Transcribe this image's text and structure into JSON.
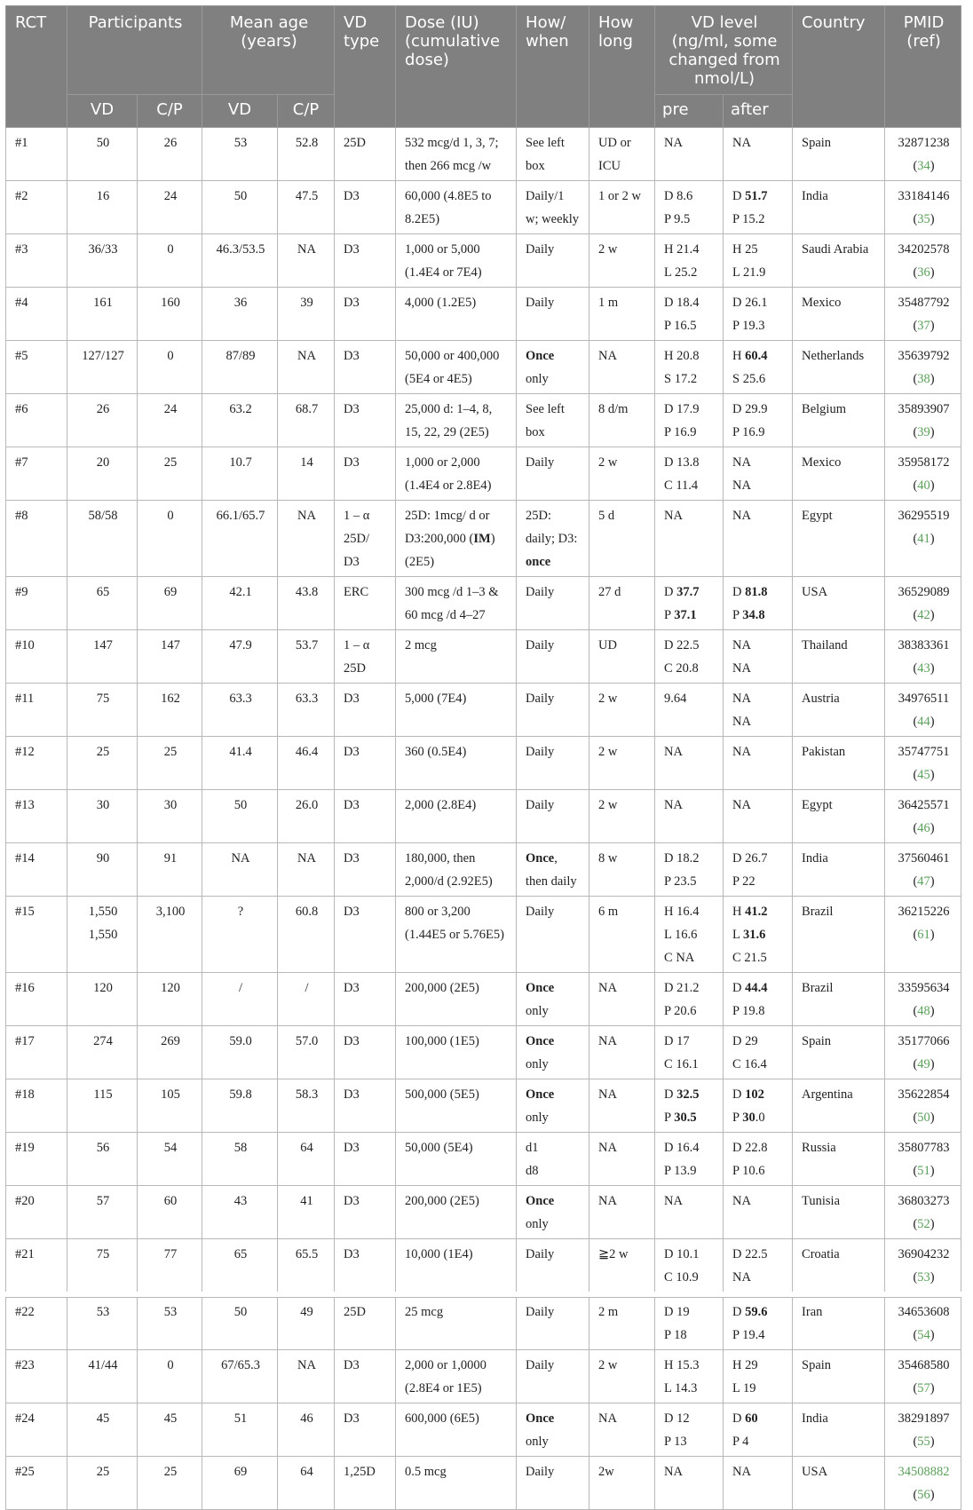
{
  "header": {
    "rct": "RCT",
    "participants": "Participants",
    "mean_age": [
      "Mean age",
      "(years)"
    ],
    "vd_type": [
      "VD",
      "type"
    ],
    "dose": [
      "Dose (IU)",
      "(cumulative",
      "dose)"
    ],
    "how_when": [
      "How/",
      "when"
    ],
    "how_long": [
      "How",
      "long"
    ],
    "vd_level": [
      "VD level",
      "(ng/ml, some",
      "changed from",
      "nmol/L)"
    ],
    "country": "Country",
    "pmid": [
      "PMID",
      "(ref)"
    ],
    "sub": {
      "vd": "VD",
      "cp": "C/P",
      "vd2": "VD",
      "cp2": "C/P",
      "pre": "pre",
      "after": "after"
    }
  },
  "colors": {
    "header_bg": "#808080",
    "ref_link": "#5aa05a"
  },
  "rows": [
    {
      "rct": "#1",
      "vd": [
        "50"
      ],
      "cp": [
        "26"
      ],
      "age_vd": [
        "53"
      ],
      "age_cp": [
        "52.8"
      ],
      "type": [
        "25D"
      ],
      "dose": [
        "532 mcg/d 1, 3, 7;",
        "then 266 mcg /w"
      ],
      "how": [
        "See left",
        "box"
      ],
      "long": [
        "UD or",
        "ICU"
      ],
      "pre": [
        "NA"
      ],
      "after": [
        "NA"
      ],
      "country": "Spain",
      "pmid": "32871238",
      "ref": "34"
    },
    {
      "rct": "#2",
      "vd": [
        "16"
      ],
      "cp": [
        "24"
      ],
      "age_vd": [
        "50"
      ],
      "age_cp": [
        "47.5"
      ],
      "type": [
        "D3"
      ],
      "dose": [
        "60,000 (4.8E5 to",
        "8.2E5)"
      ],
      "how": [
        "Daily/1",
        "w; weekly"
      ],
      "long": [
        "1 or 2 w"
      ],
      "pre": [
        "D 8.6",
        "P 9.5"
      ],
      "after": [
        [
          "D ",
          {
            "b": "51.7"
          }
        ],
        "P 15.2"
      ],
      "country": "India",
      "pmid": "33184146",
      "ref": "35"
    },
    {
      "rct": "#3",
      "vd": [
        "36/33"
      ],
      "cp": [
        "0"
      ],
      "age_vd": [
        "46.3/53.5"
      ],
      "age_cp": [
        "NA"
      ],
      "type": [
        "D3"
      ],
      "dose": [
        "1,000 or 5,000",
        "(1.4E4 or 7E4)"
      ],
      "how": [
        "Daily"
      ],
      "long": [
        "2 w"
      ],
      "pre": [
        "H 21.4",
        "L 25.2"
      ],
      "after": [
        "H 25",
        "L 21.9"
      ],
      "country": "Saudi Arabia",
      "pmid": "34202578",
      "ref": "36"
    },
    {
      "rct": "#4",
      "vd": [
        "161"
      ],
      "cp": [
        "160"
      ],
      "age_vd": [
        "36"
      ],
      "age_cp": [
        "39"
      ],
      "type": [
        "D3"
      ],
      "dose": [
        "4,000 (1.2E5)"
      ],
      "how": [
        "Daily"
      ],
      "long": [
        "1 m"
      ],
      "pre": [
        "D 18.4",
        "P 16.5"
      ],
      "after": [
        "D 26.1",
        "P 19.3"
      ],
      "country": "Mexico",
      "pmid": "35487792",
      "ref": "37"
    },
    {
      "rct": "#5",
      "vd": [
        "127/127"
      ],
      "cp": [
        "0"
      ],
      "age_vd": [
        "87/89"
      ],
      "age_cp": [
        "NA"
      ],
      "type": [
        "D3"
      ],
      "dose": [
        "50,000 or 400,000",
        "(5E4 or 4E5)"
      ],
      "how": [
        [
          {
            "b": "Once"
          }
        ],
        "only"
      ],
      "long": [
        "NA"
      ],
      "pre": [
        "H 20.8",
        "S 17.2"
      ],
      "after": [
        [
          "H ",
          {
            "b": "60.4"
          }
        ],
        "S 25.6"
      ],
      "country": "Netherlands",
      "pmid": "35639792",
      "ref": "38"
    },
    {
      "rct": "#6",
      "vd": [
        "26"
      ],
      "cp": [
        "24"
      ],
      "age_vd": [
        "63.2"
      ],
      "age_cp": [
        "68.7"
      ],
      "type": [
        "D3"
      ],
      "dose": [
        "25,000 d: 1–4, 8,",
        "15, 22, 29 (2E5)"
      ],
      "how": [
        "See left",
        "box"
      ],
      "long": [
        "8 d/m"
      ],
      "pre": [
        "D 17.9",
        "P 16.9"
      ],
      "after": [
        "D 29.9",
        "P 16.9"
      ],
      "country": "Belgium",
      "pmid": "35893907",
      "ref": "39"
    },
    {
      "rct": "#7",
      "vd": [
        "20"
      ],
      "cp": [
        "25"
      ],
      "age_vd": [
        "10.7"
      ],
      "age_cp": [
        "14"
      ],
      "type": [
        "D3"
      ],
      "dose": [
        "1,000 or 2,000",
        "(1.4E4 or 2.8E4)"
      ],
      "how": [
        "Daily"
      ],
      "long": [
        "2 w"
      ],
      "pre": [
        "D 13.8",
        "C 11.4"
      ],
      "after": [
        "NA",
        "NA"
      ],
      "country": "Mexico",
      "pmid": "35958172",
      "ref": "40"
    },
    {
      "rct": "#8",
      "vd": [
        "58/58"
      ],
      "cp": [
        "0"
      ],
      "age_vd": [
        "66.1/65.7"
      ],
      "age_cp": [
        "NA"
      ],
      "type": [
        "1 – α",
        "25D/",
        "D3"
      ],
      "dose": [
        "25D: 1mcg/ d or",
        [
          "D3:200,000 (",
          {
            "b": "IM"
          },
          ")"
        ],
        "(2E5)"
      ],
      "how": [
        "25D:",
        "daily; D3:",
        [
          {
            "b": "once"
          }
        ]
      ],
      "long": [
        "5 d"
      ],
      "pre": [
        "NA"
      ],
      "after": [
        "NA"
      ],
      "country": "Egypt",
      "pmid": "36295519",
      "ref": "41"
    },
    {
      "rct": "#9",
      "vd": [
        "65"
      ],
      "cp": [
        "69"
      ],
      "age_vd": [
        "42.1"
      ],
      "age_cp": [
        "43.8"
      ],
      "type": [
        "ERC"
      ],
      "dose": [
        "300 mcg /d 1–3 &",
        "60 mcg /d 4–27"
      ],
      "how": [
        "Daily"
      ],
      "long": [
        "27 d"
      ],
      "pre": [
        [
          "D ",
          {
            "b": "37.7"
          }
        ],
        [
          "P ",
          {
            "b": "37.1"
          }
        ]
      ],
      "after": [
        [
          "D ",
          {
            "b": "81.8"
          }
        ],
        [
          "P ",
          {
            "b": "34.8"
          }
        ]
      ],
      "country": "USA",
      "pmid": "36529089",
      "ref": "42"
    },
    {
      "rct": "#10",
      "vd": [
        "147"
      ],
      "cp": [
        "147"
      ],
      "age_vd": [
        "47.9"
      ],
      "age_cp": [
        "53.7"
      ],
      "type": [
        "1 – α",
        "25D"
      ],
      "dose": [
        "2 mcg"
      ],
      "how": [
        "Daily"
      ],
      "long": [
        "UD"
      ],
      "pre": [
        "D 22.5",
        "C 20.8"
      ],
      "after": [
        "NA",
        "NA"
      ],
      "country": "Thailand",
      "pmid": "38383361",
      "ref": "43"
    },
    {
      "rct": "#11",
      "vd": [
        "75"
      ],
      "cp": [
        "162"
      ],
      "age_vd": [
        "63.3"
      ],
      "age_cp": [
        "63.3"
      ],
      "type": [
        "D3"
      ],
      "dose": [
        "5,000 (7E4)"
      ],
      "how": [
        "Daily"
      ],
      "long": [
        "2 w"
      ],
      "pre": [
        "9.64"
      ],
      "after": [
        "NA",
        "NA"
      ],
      "country": "Austria",
      "pmid": "34976511",
      "ref": "44"
    },
    {
      "rct": "#12",
      "vd": [
        "25"
      ],
      "cp": [
        "25"
      ],
      "age_vd": [
        "41.4"
      ],
      "age_cp": [
        "46.4"
      ],
      "type": [
        "D3"
      ],
      "dose": [
        "360 (0.5E4)"
      ],
      "how": [
        "Daily"
      ],
      "long": [
        "2 w"
      ],
      "pre": [
        "NA"
      ],
      "after": [
        "NA"
      ],
      "country": "Pakistan",
      "pmid": "35747751",
      "ref": "45"
    },
    {
      "rct": "#13",
      "vd": [
        "30"
      ],
      "cp": [
        "30"
      ],
      "age_vd": [
        "50"
      ],
      "age_cp": [
        "26.0"
      ],
      "type": [
        "D3"
      ],
      "dose": [
        "2,000 (2.8E4)"
      ],
      "how": [
        "Daily"
      ],
      "long": [
        "2 w"
      ],
      "pre": [
        "NA"
      ],
      "after": [
        "NA"
      ],
      "country": "Egypt",
      "pmid": "36425571",
      "ref": "46"
    },
    {
      "rct": "#14",
      "vd": [
        "90"
      ],
      "cp": [
        "91"
      ],
      "age_vd": [
        "NA"
      ],
      "age_cp": [
        "NA"
      ],
      "type": [
        "D3"
      ],
      "dose": [
        "180,000, then",
        "2,000/d (2.92E5)"
      ],
      "how": [
        [
          {
            "b": "Once"
          },
          ","
        ],
        "then daily"
      ],
      "long": [
        "8 w"
      ],
      "pre": [
        "D 18.2",
        "P 23.5"
      ],
      "after": [
        "D 26.7",
        "P 22"
      ],
      "country": "India",
      "pmid": "37560461",
      "ref": "47"
    },
    {
      "rct": "#15",
      "vd": [
        "1,550",
        "1,550"
      ],
      "cp": [
        "3,100"
      ],
      "age_vd": [
        "?"
      ],
      "age_cp": [
        "60.8"
      ],
      "type": [
        "D3"
      ],
      "dose": [
        "800 or 3,200",
        "(1.44E5 or 5.76E5)"
      ],
      "how": [
        "Daily"
      ],
      "long": [
        "6 m"
      ],
      "pre": [
        "H 16.4",
        "L 16.6",
        "C NA"
      ],
      "after": [
        [
          "H ",
          {
            "b": "41.2"
          }
        ],
        [
          "L ",
          {
            "b": "31.6"
          }
        ],
        "C 21.5"
      ],
      "country": "Brazil",
      "pmid": "36215226",
      "ref": "61"
    },
    {
      "rct": "#16",
      "vd": [
        "120"
      ],
      "cp": [
        "120"
      ],
      "age_vd": [
        "/"
      ],
      "age_cp": [
        "/"
      ],
      "type": [
        "D3"
      ],
      "dose": [
        "200,000 (2E5)"
      ],
      "how": [
        [
          {
            "b": "Once"
          }
        ],
        "only"
      ],
      "long": [
        "NA"
      ],
      "pre": [
        "D 21.2",
        "P 20.6"
      ],
      "after": [
        [
          "D ",
          {
            "b": "44.4"
          }
        ],
        "P 19.8"
      ],
      "country": "Brazil",
      "pmid": "33595634",
      "ref": "48"
    },
    {
      "rct": "#17",
      "vd": [
        "274"
      ],
      "cp": [
        "269"
      ],
      "age_vd": [
        "59.0"
      ],
      "age_cp": [
        "57.0"
      ],
      "type": [
        "D3"
      ],
      "dose": [
        "100,000 (1E5)"
      ],
      "how": [
        [
          {
            "b": "Once"
          }
        ],
        "only"
      ],
      "long": [
        "NA"
      ],
      "pre": [
        "D 17",
        "C 16.1"
      ],
      "after": [
        "D 29",
        "C 16.4"
      ],
      "country": "Spain",
      "pmid": "35177066",
      "ref": "49"
    },
    {
      "rct": "#18",
      "vd": [
        "115"
      ],
      "cp": [
        "105"
      ],
      "age_vd": [
        "59.8"
      ],
      "age_cp": [
        "58.3"
      ],
      "type": [
        "D3"
      ],
      "dose": [
        "500,000 (5E5)"
      ],
      "how": [
        [
          {
            "b": "Once"
          }
        ],
        "only"
      ],
      "long": [
        "NA"
      ],
      "pre": [
        [
          "D ",
          {
            "b": "32.5"
          }
        ],
        [
          "P ",
          {
            "b": "30.5"
          }
        ]
      ],
      "after": [
        [
          "D ",
          {
            "b": "102"
          }
        ],
        [
          "P ",
          {
            "b": "30"
          },
          ".0"
        ]
      ],
      "country": "Argentina",
      "pmid": "35622854",
      "ref": "50"
    },
    {
      "rct": "#19",
      "vd": [
        "56"
      ],
      "cp": [
        "54"
      ],
      "age_vd": [
        "58"
      ],
      "age_cp": [
        "64"
      ],
      "type": [
        "D3"
      ],
      "dose": [
        "50,000 (5E4)"
      ],
      "how": [
        "d1",
        "d8"
      ],
      "long": [
        "NA"
      ],
      "pre": [
        "D 16.4",
        "P 13.9"
      ],
      "after": [
        "D 22.8",
        "P 10.6"
      ],
      "country": "Russia",
      "pmid": "35807783",
      "ref": "51"
    },
    {
      "rct": "#20",
      "vd": [
        "57"
      ],
      "cp": [
        "60"
      ],
      "age_vd": [
        "43"
      ],
      "age_cp": [
        "41"
      ],
      "type": [
        "D3"
      ],
      "dose": [
        "200,000 (2E5)"
      ],
      "how": [
        [
          {
            "b": "Once"
          }
        ],
        "only"
      ],
      "long": [
        "NA"
      ],
      "pre": [
        "NA"
      ],
      "after": [
        "NA"
      ],
      "country": "Tunisia",
      "pmid": "36803273",
      "ref": "52"
    },
    {
      "rct": "#21",
      "vd": [
        "75"
      ],
      "cp": [
        "77"
      ],
      "age_vd": [
        "65"
      ],
      "age_cp": [
        "65.5"
      ],
      "type": [
        "D3"
      ],
      "dose": [
        "10,000 (1E4)"
      ],
      "how": [
        "Daily"
      ],
      "long": [
        "≧2 w"
      ],
      "pre": [
        "D 10.1",
        "C 10.9"
      ],
      "after": [
        "D 22.5",
        "NA"
      ],
      "country": "Croatia",
      "pmid": "36904232",
      "ref": "53"
    },
    {
      "rct": "#22",
      "vd": [
        "53"
      ],
      "cp": [
        "53"
      ],
      "age_vd": [
        "50"
      ],
      "age_cp": [
        "49"
      ],
      "type": [
        "25D"
      ],
      "dose": [
        "25 mcg"
      ],
      "how": [
        "Daily"
      ],
      "long": [
        "2 m"
      ],
      "pre": [
        "D 19",
        "P 18"
      ],
      "after": [
        [
          "D ",
          {
            "b": "59.6"
          }
        ],
        "P 19.4"
      ],
      "country": "Iran",
      "pmid": "34653608",
      "ref": "54"
    },
    {
      "rct": "#23",
      "vd": [
        "41/44"
      ],
      "cp": [
        "0"
      ],
      "age_vd": [
        "67/65.3"
      ],
      "age_cp": [
        "NA"
      ],
      "type": [
        "D3"
      ],
      "dose": [
        "2,000 or 1,0000",
        "(2.8E4 or 1E5)"
      ],
      "how": [
        "Daily"
      ],
      "long": [
        "2 w"
      ],
      "pre": [
        "H 15.3",
        "L 14.3"
      ],
      "after": [
        "H 29",
        "L 19"
      ],
      "country": "Spain",
      "pmid": "35468580",
      "ref": "57"
    },
    {
      "rct": "#24",
      "vd": [
        "45"
      ],
      "cp": [
        "45"
      ],
      "age_vd": [
        "51"
      ],
      "age_cp": [
        "46"
      ],
      "type": [
        "D3"
      ],
      "dose": [
        "600,000 (6E5)"
      ],
      "how": [
        [
          {
            "b": "Once"
          }
        ],
        "only"
      ],
      "long": [
        "NA"
      ],
      "pre": [
        "D 12",
        "P 13"
      ],
      "after": [
        [
          "D ",
          {
            "b": "60"
          }
        ],
        "P 4"
      ],
      "country": "India",
      "pmid": "38291897",
      "ref": "55"
    },
    {
      "rct": "#25",
      "vd": [
        "25"
      ],
      "cp": [
        "25"
      ],
      "age_vd": [
        "69"
      ],
      "age_cp": [
        "64"
      ],
      "type": [
        "1,25D"
      ],
      "dose": [
        "0.5 mcg"
      ],
      "how": [
        "Daily"
      ],
      "long": [
        "2w"
      ],
      "pre": [
        "NA"
      ],
      "after": [
        "NA"
      ],
      "country": "USA",
      "pmid": "34508882",
      "pmid_link": true,
      "ref": "56"
    }
  ]
}
